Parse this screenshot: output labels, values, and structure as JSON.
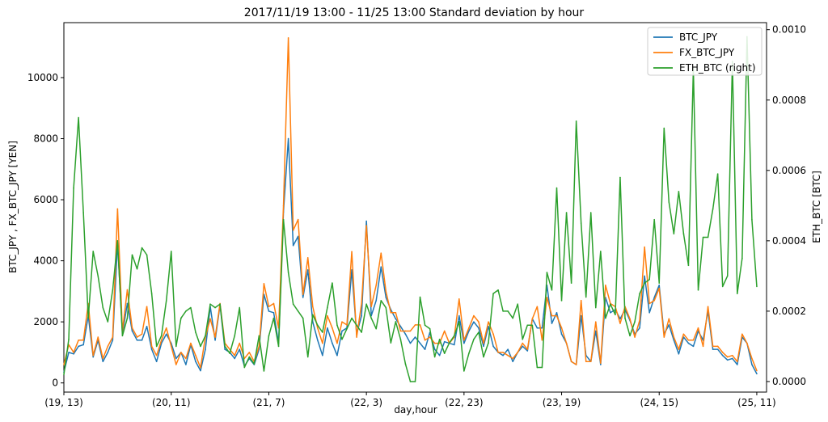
{
  "chart_data": {
    "type": "line",
    "title": "2017/11/19 13:00 - 11/25 13:00 Standard deviation by hour",
    "xlabel": "day,hour",
    "ylabel_left": "BTC_JPY , FX_BTC_JPY [YEN]",
    "ylabel_right": "ETH_BTC [BTC]",
    "x_ticks": [
      "(19, 13)",
      "(20, 11)",
      "(21, 7)",
      "(22, 3)",
      "(22, 23)",
      "(23, 19)",
      "(24, 15)",
      "(25, 11)"
    ],
    "x_tick_index": [
      0,
      22,
      42,
      62,
      82,
      102,
      122,
      142
    ],
    "xlim": [
      0,
      144
    ],
    "y_left_ticks": [
      "0",
      "2000",
      "4000",
      "6000",
      "8000",
      "10000"
    ],
    "y_left_lim": [
      -300,
      11800
    ],
    "y_right_ticks": [
      "0.0000",
      "0.0002",
      "0.0004",
      "0.0006",
      "0.0008",
      "0.0010"
    ],
    "y_right_lim": [
      -3e-05,
      0.00102
    ],
    "legend_position": "top-right",
    "grid": false,
    "series": [
      {
        "name": "BTC_JPY",
        "axis": "left",
        "color": "#1f77b4",
        "values": [
          350,
          1000,
          950,
          1200,
          1250,
          2200,
          850,
          1400,
          700,
          1000,
          1400,
          4600,
          1600,
          2600,
          1700,
          1400,
          1400,
          1850,
          1100,
          700,
          1300,
          1600,
          1300,
          800,
          1000,
          600,
          1250,
          700,
          400,
          1100,
          2500,
          1400,
          2550,
          1100,
          1000,
          800,
          1100,
          550,
          800,
          600,
          1100,
          2900,
          2350,
          2300,
          1300,
          5600,
          8000,
          4500,
          4800,
          2800,
          3700,
          2000,
          1400,
          900,
          1800,
          1300,
          900,
          1700,
          1800,
          3700,
          1600,
          2200,
          5300,
          2200,
          2700,
          3800,
          2800,
          2400,
          2100,
          1850,
          1600,
          1300,
          1500,
          1300,
          1100,
          1650,
          1100,
          900,
          1350,
          1300,
          1250,
          2200,
          1300,
          1700,
          2000,
          1800,
          1200,
          1850,
          1200,
          1000,
          900,
          1100,
          700,
          1000,
          1200,
          1050,
          2100,
          1800,
          1800,
          3200,
          1950,
          2300,
          1600,
          1300,
          700,
          600,
          2200,
          900,
          700,
          1700,
          600,
          2800,
          2300,
          2400,
          2100,
          2400,
          2050,
          1600,
          1800,
          3500,
          2300,
          2800,
          3200,
          1600,
          1900,
          1400,
          950,
          1500,
          1300,
          1200,
          1700,
          1400,
          2350,
          1100,
          1100,
          900,
          750,
          800,
          600,
          1500,
          1300,
          600,
          300
        ]
      },
      {
        "name": "FX_BTC_JPY",
        "axis": "left",
        "color": "#ff7f0e",
        "values": [
          600,
          1250,
          1000,
          1400,
          1400,
          2600,
          900,
          1500,
          800,
          1200,
          1500,
          5700,
          1700,
          3050,
          1800,
          1500,
          1600,
          2500,
          1200,
          900,
          1400,
          1800,
          1200,
          600,
          1000,
          800,
          1300,
          900,
          500,
          1500,
          2100,
          1500,
          2600,
          1300,
          1100,
          900,
          1300,
          800,
          1000,
          700,
          1200,
          3250,
          2500,
          2600,
          1800,
          5800,
          11300,
          5000,
          5350,
          2900,
          4100,
          2500,
          1800,
          1300,
          2200,
          1800,
          1300,
          2000,
          1900,
          4300,
          1500,
          2600,
          5150,
          2500,
          3200,
          4250,
          3000,
          2300,
          2300,
          1700,
          1700,
          1700,
          1900,
          1900,
          1400,
          1500,
          1300,
          1300,
          1700,
          1300,
          1500,
          2750,
          1400,
          1800,
          2200,
          2000,
          1300,
          2000,
          1600,
          1000,
          1000,
          900,
          800,
          1000,
          1300,
          1100,
          2100,
          2500,
          1400,
          2800,
          2200,
          2200,
          1800,
          1300,
          700,
          600,
          2700,
          700,
          700,
          2000,
          650,
          3200,
          2600,
          2500,
          1950,
          2500,
          2100,
          1500,
          2050,
          4450,
          2600,
          2700,
          3100,
          1500,
          2100,
          1500,
          1100,
          1600,
          1400,
          1400,
          1800,
          1200,
          2500,
          1200,
          1200,
          1000,
          850,
          900,
          700,
          1600,
          1300,
          800,
          400
        ]
      },
      {
        "name": "ETH_BTC (right)",
        "axis": "right",
        "color": "#2ca02c",
        "values": [
          2e-05,
          0.00012,
          0.00055,
          0.00075,
          0.00048,
          0.00018,
          0.00037,
          0.0003,
          0.00021,
          0.00017,
          0.00026,
          0.0004,
          0.00013,
          0.00018,
          0.00036,
          0.00032,
          0.00038,
          0.00036,
          0.00025,
          0.0001,
          0.00013,
          0.00023,
          0.00037,
          0.0001,
          0.00018,
          0.0002,
          0.00021,
          0.00014,
          0.0001,
          0.00013,
          0.00022,
          0.00021,
          0.00022,
          0.0001,
          8e-05,
          0.00013,
          0.00021,
          4e-05,
          7e-05,
          5e-05,
          0.00013,
          3e-05,
          0.00013,
          0.00018,
          0.0001,
          0.00046,
          0.00031,
          0.00022,
          0.0002,
          0.00018,
          7e-05,
          0.00019,
          0.00016,
          0.00014,
          0.00021,
          0.00028,
          0.00016,
          0.00012,
          0.00015,
          0.00018,
          0.00016,
          0.00014,
          0.00022,
          0.00018,
          0.00015,
          0.00023,
          0.00021,
          0.00011,
          0.00017,
          0.00012,
          5e-05,
          0.0,
          0.0,
          0.00024,
          0.00016,
          0.00015,
          7e-05,
          0.00012,
          8e-05,
          0.00011,
          0.00013,
          0.00017,
          3e-05,
          8e-05,
          0.00012,
          0.00014,
          7e-05,
          0.00011,
          0.00025,
          0.00026,
          0.0002,
          0.0002,
          0.00018,
          0.00022,
          0.00012,
          0.00016,
          0.00016,
          4e-05,
          4e-05,
          0.00031,
          0.00026,
          0.00055,
          0.00023,
          0.00048,
          0.00028,
          0.00074,
          0.00045,
          0.00024,
          0.00048,
          0.00021,
          0.00037,
          0.00018,
          0.00022,
          0.00019,
          0.00058,
          0.00018,
          0.00013,
          0.00017,
          0.00025,
          0.00028,
          0.00029,
          0.00046,
          0.00028,
          0.00072,
          0.00051,
          0.00042,
          0.00054,
          0.00042,
          0.00033,
          0.00089,
          0.00026,
          0.00041,
          0.00041,
          0.00049,
          0.00059,
          0.00027,
          0.0003,
          0.00091,
          0.00025,
          0.00035,
          0.00098,
          0.00046,
          0.00027
        ]
      }
    ]
  }
}
